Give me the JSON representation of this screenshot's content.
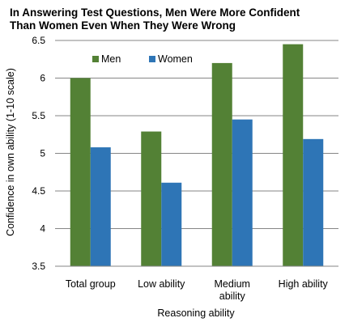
{
  "chart_data": {
    "type": "bar",
    "title_lines": [
      "In Answering Test Questions, Men Were More Confident",
      "Than Women Even When They Were Wrong"
    ],
    "xlabel": "Reasoning ability",
    "ylabel": "Confidence in own ability (1-10 scale)",
    "categories": [
      [
        "Total group"
      ],
      [
        "Low ability"
      ],
      [
        "Medium",
        "ability"
      ],
      [
        "High ability"
      ]
    ],
    "series": [
      {
        "name": "Men",
        "color": "#538135",
        "values": [
          6.0,
          5.29,
          6.2,
          6.45
        ]
      },
      {
        "name": "Women",
        "color": "#2e75b6",
        "values": [
          5.08,
          4.61,
          5.45,
          5.19
        ]
      }
    ],
    "ylim": [
      3.5,
      6.5
    ],
    "yticks": [
      "3.5",
      "4",
      "4.5",
      "5",
      "5.5",
      "6",
      "6.5"
    ],
    "grid": true,
    "legend": "top-left"
  }
}
